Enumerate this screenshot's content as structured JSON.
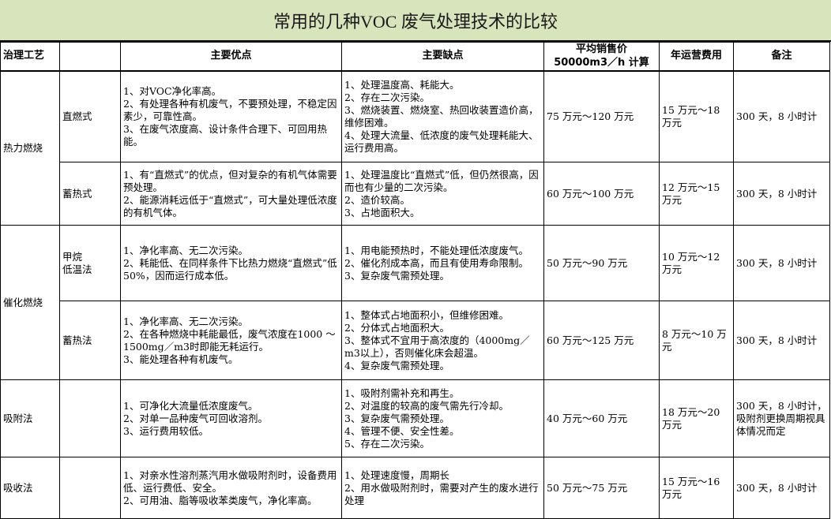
{
  "title": "常用的几种VOC 废气处理技术的比较",
  "headers": [
    "治理工艺",
    "",
    "主要优点",
    "主要缺点",
    "平均销售价\n50000m3／h 计算",
    "年运营费用",
    "备注"
  ],
  "rows": [
    {
      "group": "热力燃烧",
      "group_span": 2,
      "method": "直燃式",
      "pros": [
        "1、对VOC净化率高。",
        "2、有处理各种有机废气，不要预处理，不稳定因素少，可靠性高。",
        "3、在废气浓度高、设计条件合理下、可回用热能。"
      ],
      "cons": [
        "1、处理温度高、耗能大。",
        "2、存在二次污染。",
        "3、燃烧装置、燃烧室、热回收装置造价高，维修困难。",
        "4、处理大流量、低浓度的废气处理耗能大、运行费用高。"
      ],
      "price": "75 万元～120 万元",
      "annual_cost": "15 万元～18 万元",
      "note": "300 天，8 小时计"
    },
    {
      "method": "蓄热式",
      "pros": [
        "1、有“直燃式”的优点，但对复杂的有机气体需要预处理。",
        "2、能源消耗远低于“直燃式”，可大量处理低浓度的有机气体。"
      ],
      "cons": [
        "1、处理温度比“直燃式”低，但仍然很高，因而也有少量的二次污染。",
        "2、造价较高。",
        "3、占地面积大。"
      ],
      "price": "60 万元～100 万元",
      "annual_cost": "12 万元～15 万元",
      "note": "300 天，8 小时计"
    },
    {
      "group": "催化燃烧",
      "group_span": 2,
      "method": "甲烷\n低温法",
      "pros": [
        "1、净化率高、无二次污染。",
        "2、耗能低、在同样条件下比热力燃烧“直燃式”低50%，因而运行成本低。"
      ],
      "cons": [
        "1、用电能预热时，不能处理低浓度废气。",
        "2、催化剂成本高，而且有使用寿命限制。",
        "3、复杂废气需预处理。"
      ],
      "price": "50 万元～90 万元",
      "annual_cost": "10 万元～12 万元",
      "note": "300 天，8 小时计"
    },
    {
      "method": "蓄热法",
      "pros": [
        "1、净化率高、无二次污染。",
        "2、在各种燃烧中耗能最低，废气浓度在1000 ～1500mg／m3时即能无耗运行。",
        "3、能处理各种有机废气。"
      ],
      "cons": [
        "1、整体式占地面积小，但维修困难。",
        "2、分体式占地面积大。",
        "3、整体式不宜用于高浓度的（4000mg／m3以上），否则催化床会超温。",
        "4、复杂废气需预处理。"
      ],
      "price": "60 万元～125 万元",
      "annual_cost": "8 万元～10 万元",
      "note": "300 天，8 小时计"
    },
    {
      "group": "吸附法",
      "group_span": 1,
      "method": "",
      "pros": [
        "1、可净化大流量低浓度废气。",
        "2、对单一品种废气可回收溶剂。",
        "3、运行费用较低。"
      ],
      "cons": [
        "1、吸附剂需补充和再生。",
        "2、对温度的较高的废气需先行冷却。",
        "3、复杂废气需预处理。",
        "4、管理不便、安全性差。",
        "5、存在二次污染。"
      ],
      "price": "40 万元～60 万元",
      "annual_cost": "18 万元～20 万元",
      "note": "300 天，8 小时计，吸附剂更换周期视具体情况而定"
    },
    {
      "group": "吸收法",
      "group_span": 1,
      "method": "",
      "pros": [
        "1、对亲水性溶剂蒸汽用水做吸附剂时，设备费用低、运行费低、安全。",
        "2、可用油、脂等吸收苯类废气，净化率高。"
      ],
      "cons": [
        "1、处理速度慢，周期长",
        "2、用水做吸附剂时，需要对产生的废水进行处理"
      ],
      "price": "50 万元～75 万元",
      "annual_cost": "15 万元～16 万元",
      "note": "300 天，8 小时计"
    }
  ]
}
